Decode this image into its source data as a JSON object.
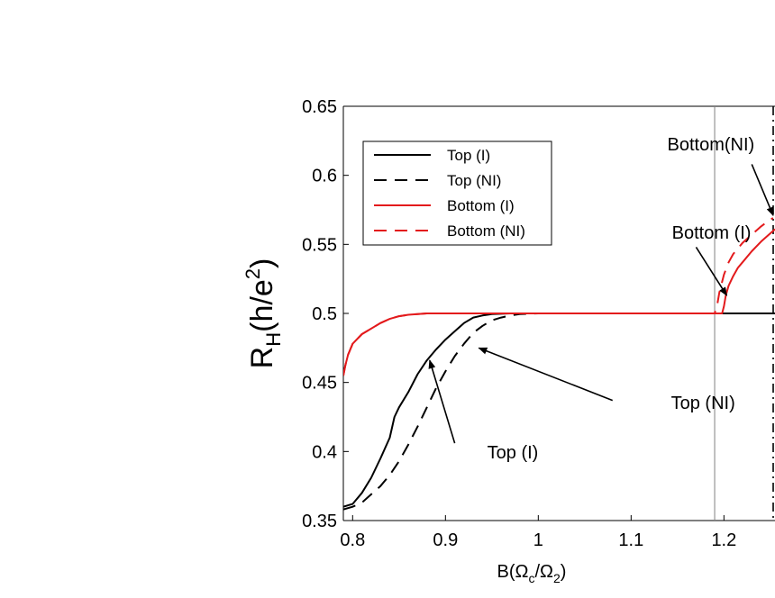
{
  "chart_data": {
    "type": "line",
    "xlabel": {
      "base": "B(",
      "sym1": "Ω",
      "sub1": "c",
      "mid": "/",
      "sym2": "Ω",
      "sub2": "2",
      "end": ")"
    },
    "ylabel": {
      "base": "R",
      "sub": "H",
      "mid": "(h/e",
      "sup": "2",
      "end": ")"
    },
    "xlim": [
      0.79,
      1.255
    ],
    "ylim": [
      0.35,
      0.65
    ],
    "xticks": [
      {
        "value": 0.8,
        "label": "0.8"
      },
      {
        "value": 0.9,
        "label": "0.9"
      },
      {
        "value": 1.0,
        "label": "1"
      },
      {
        "value": 1.1,
        "label": "1.1"
      },
      {
        "value": 1.2,
        "label": "1.2"
      }
    ],
    "yticks": [
      {
        "value": 0.35,
        "label": "0.35"
      },
      {
        "value": 0.4,
        "label": "0.4"
      },
      {
        "value": 0.45,
        "label": "0.45"
      },
      {
        "value": 0.5,
        "label": "0.5"
      },
      {
        "value": 0.55,
        "label": "0.55"
      },
      {
        "value": 0.6,
        "label": "0.6"
      },
      {
        "value": 0.65,
        "label": "0.65"
      }
    ],
    "grid": false,
    "legend_position": "top-left",
    "series": [
      {
        "name": "Top (I)",
        "color": "#000000",
        "dash": "solid",
        "points": [
          [
            0.79,
            0.36
          ],
          [
            0.8,
            0.362
          ],
          [
            0.81,
            0.37
          ],
          [
            0.82,
            0.381
          ],
          [
            0.83,
            0.395
          ],
          [
            0.84,
            0.41
          ],
          [
            0.845,
            0.425
          ],
          [
            0.85,
            0.432
          ],
          [
            0.86,
            0.443
          ],
          [
            0.87,
            0.456
          ],
          [
            0.88,
            0.466
          ],
          [
            0.89,
            0.474
          ],
          [
            0.9,
            0.481
          ],
          [
            0.91,
            0.487
          ],
          [
            0.92,
            0.493
          ],
          [
            0.93,
            0.497
          ],
          [
            0.94,
            0.4985
          ],
          [
            0.95,
            0.4995
          ],
          [
            0.97,
            0.5
          ],
          [
            1.0,
            0.5
          ],
          [
            1.1,
            0.5
          ],
          [
            1.2,
            0.5
          ],
          [
            1.255,
            0.5
          ]
        ]
      },
      {
        "name": "Top (NI)",
        "color": "#000000",
        "dash": "dashed",
        "points": [
          [
            0.79,
            0.358
          ],
          [
            0.8,
            0.36
          ],
          [
            0.81,
            0.363
          ],
          [
            0.82,
            0.369
          ],
          [
            0.83,
            0.375
          ],
          [
            0.84,
            0.383
          ],
          [
            0.85,
            0.393
          ],
          [
            0.86,
            0.405
          ],
          [
            0.87,
            0.418
          ],
          [
            0.88,
            0.432
          ],
          [
            0.89,
            0.446
          ],
          [
            0.9,
            0.458
          ],
          [
            0.91,
            0.469
          ],
          [
            0.92,
            0.478
          ],
          [
            0.93,
            0.486
          ],
          [
            0.94,
            0.491
          ],
          [
            0.95,
            0.495
          ],
          [
            0.96,
            0.497
          ],
          [
            0.97,
            0.4985
          ],
          [
            0.98,
            0.4995
          ],
          [
            1.0,
            0.5
          ],
          [
            1.1,
            0.5
          ],
          [
            1.2,
            0.5
          ]
        ]
      },
      {
        "name": "Bottom (I)",
        "color": "#e31a1c",
        "dash": "solid",
        "points": [
          [
            0.79,
            0.455
          ],
          [
            0.792,
            0.462
          ],
          [
            0.795,
            0.47
          ],
          [
            0.8,
            0.478
          ],
          [
            0.81,
            0.485
          ],
          [
            0.82,
            0.489
          ],
          [
            0.83,
            0.493
          ],
          [
            0.84,
            0.496
          ],
          [
            0.85,
            0.498
          ],
          [
            0.86,
            0.499
          ],
          [
            0.87,
            0.4995
          ],
          [
            0.88,
            0.5
          ],
          [
            0.9,
            0.5
          ],
          [
            1.0,
            0.5
          ],
          [
            1.1,
            0.5
          ],
          [
            1.19,
            0.5
          ],
          [
            1.195,
            0.5
          ],
          [
            1.198,
            0.5
          ],
          [
            1.2,
            0.505
          ],
          [
            1.202,
            0.513
          ],
          [
            1.205,
            0.52
          ],
          [
            1.21,
            0.527
          ],
          [
            1.215,
            0.533
          ],
          [
            1.22,
            0.537
          ],
          [
            1.23,
            0.545
          ],
          [
            1.24,
            0.552
          ],
          [
            1.25,
            0.558
          ],
          [
            1.255,
            0.561
          ]
        ]
      },
      {
        "name": "Bottom (NI)",
        "color": "#e31a1c",
        "dash": "dashed",
        "points": [
          [
            0.79,
            0.455
          ],
          [
            0.792,
            0.462
          ],
          [
            0.795,
            0.47
          ],
          [
            0.8,
            0.478
          ],
          [
            0.81,
            0.485
          ],
          [
            0.82,
            0.489
          ],
          [
            0.83,
            0.493
          ],
          [
            0.84,
            0.496
          ],
          [
            0.85,
            0.498
          ],
          [
            0.86,
            0.499
          ],
          [
            0.87,
            0.4995
          ],
          [
            0.88,
            0.5
          ],
          [
            0.9,
            0.5
          ],
          [
            1.0,
            0.5
          ],
          [
            1.1,
            0.5
          ],
          [
            1.19,
            0.5
          ],
          [
            1.193,
            0.507
          ],
          [
            1.195,
            0.515
          ],
          [
            1.2,
            0.528
          ],
          [
            1.205,
            0.537
          ],
          [
            1.21,
            0.543
          ],
          [
            1.22,
            0.551
          ],
          [
            1.23,
            0.557
          ],
          [
            1.24,
            0.563
          ],
          [
            1.25,
            0.568
          ],
          [
            1.253,
            0.569
          ]
        ]
      }
    ],
    "reference_lines": [
      {
        "x": 1.19,
        "style": "solid",
        "color": "#808080"
      },
      {
        "x": 1.255,
        "style": "dashdot",
        "color": "#000000"
      }
    ],
    "annotations": [
      {
        "text": "Bottom(NI)",
        "text_x": 1.139,
        "text_y": 0.618,
        "arrow_from": [
          1.23,
          0.608
        ],
        "arrow_to": [
          1.253,
          0.571
        ]
      },
      {
        "text": "Bottom (I)",
        "text_x": 1.144,
        "text_y": 0.554,
        "arrow_from": [
          1.17,
          0.548
        ],
        "arrow_to": [
          1.203,
          0.513
        ]
      },
      {
        "text": "Top (NI)",
        "text_x": 1.143,
        "text_y": 0.431,
        "arrow_from": [
          1.08,
          0.437
        ],
        "arrow_to": [
          0.936,
          0.475
        ]
      },
      {
        "text": "Top (I)",
        "text_x": 0.945,
        "text_y": 0.395,
        "arrow_from": [
          0.91,
          0.406
        ],
        "arrow_to": [
          0.883,
          0.466
        ]
      }
    ]
  }
}
